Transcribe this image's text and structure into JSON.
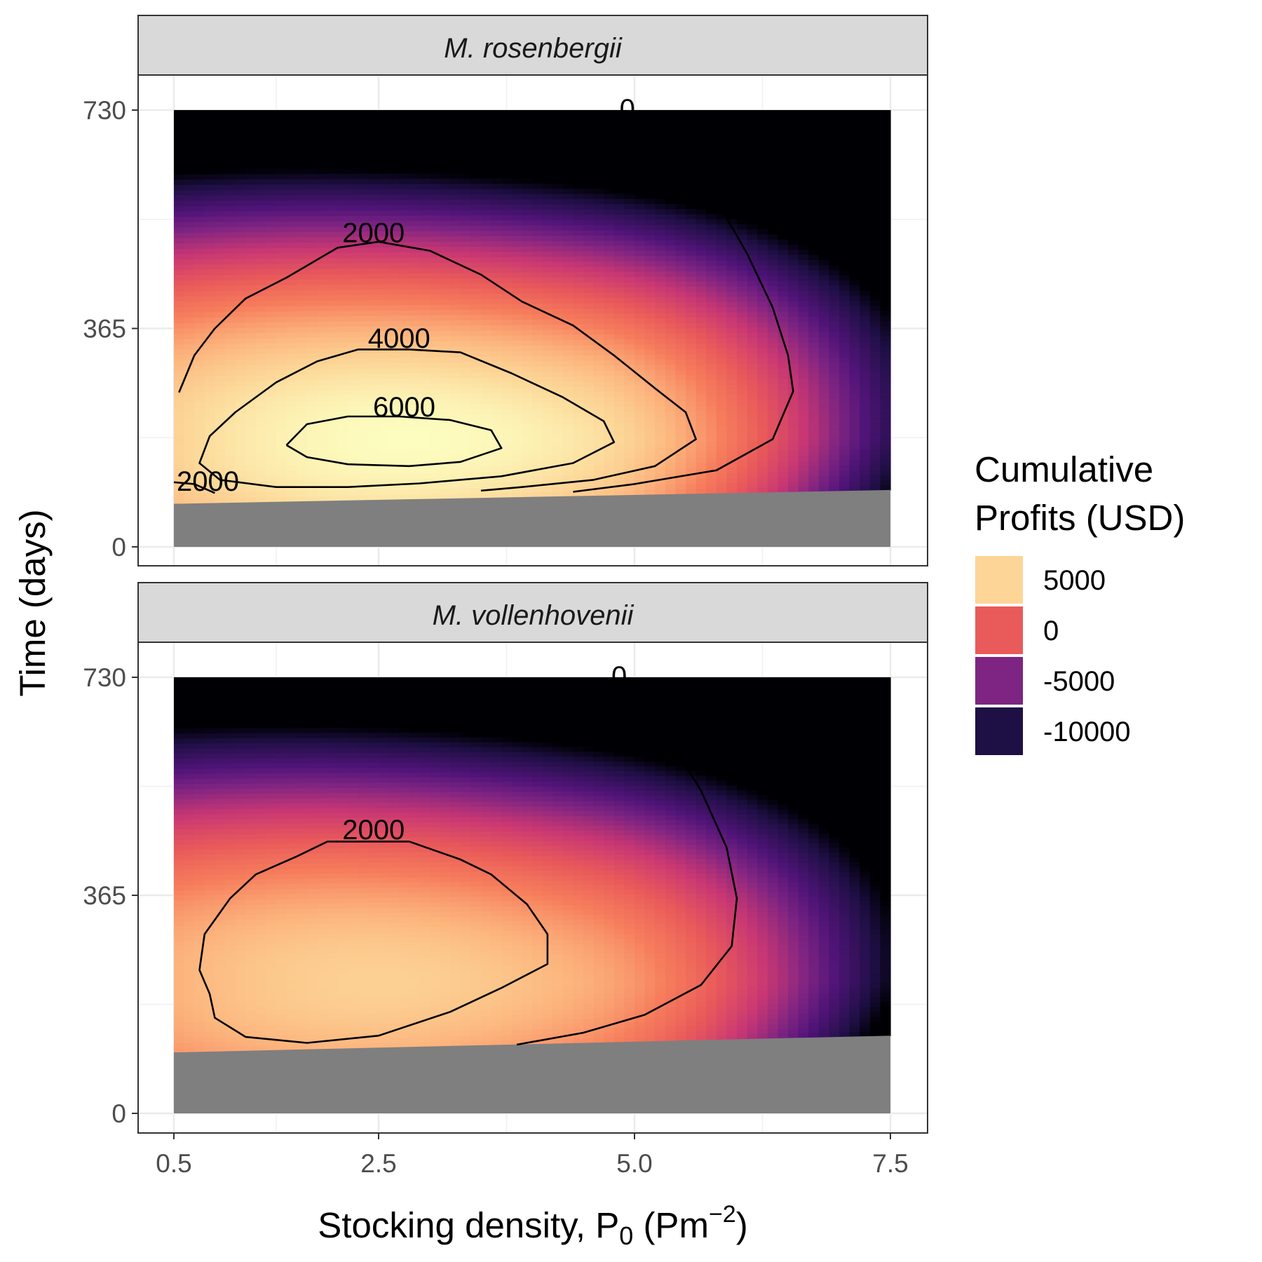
{
  "chart_data": {
    "type": "heatmap",
    "subtype": "filled-gradient-with-contours",
    "x_axis": {
      "label_main": "Stocking density, P",
      "label_sub": "0",
      "label_tail_open": " (Pm",
      "label_sup": "−2",
      "label_close": ")",
      "range": [
        0.5,
        7.5
      ],
      "ticks": [
        0.5,
        2.5,
        5.0,
        7.5
      ],
      "tick_labels": [
        "0.5",
        "2.5",
        "5.0",
        "7.5"
      ]
    },
    "y_axis": {
      "label": "Time (days)",
      "range": [
        0,
        730
      ],
      "ticks": [
        0,
        365,
        730
      ],
      "tick_labels": [
        "0",
        "365",
        "730"
      ]
    },
    "grid": true,
    "legend": {
      "title_line1": "Cumulative",
      "title_line2": "Profits (USD)",
      "position": "right",
      "entries": [
        {
          "label": "5000",
          "color": "#FCD597"
        },
        {
          "label": "0",
          "color": "#E95A5A"
        },
        {
          "label": "-5000",
          "color": "#7E2482"
        },
        {
          "label": "-10000",
          "color": "#1E0F44"
        }
      ]
    },
    "unavailable_color": "#7F7F7F",
    "panels": [
      {
        "title": "M. rosenbergii",
        "peak": {
          "x": 2.8,
          "y": 180
        },
        "infeasible_boundary": [
          [
            0.5,
            72
          ],
          [
            7.5,
            95
          ]
        ],
        "contours": [
          {
            "label": "0",
            "label_pos": [
              4.93,
              730
            ],
            "points": [
              [
                4.95,
                720
              ],
              [
                5.4,
                660
              ],
              [
                5.8,
                580
              ],
              [
                6.1,
                490
              ],
              [
                6.35,
                400
              ],
              [
                6.5,
                320
              ],
              [
                6.55,
                260
              ],
              [
                6.35,
                180
              ],
              [
                5.8,
                128
              ],
              [
                5.0,
                105
              ],
              [
                4.4,
                92
              ]
            ]
          },
          {
            "label": "2000",
            "label_pos": [
              2.45,
              523
            ],
            "points": [
              [
                0.55,
                258
              ],
              [
                0.7,
                320
              ],
              [
                0.9,
                365
              ],
              [
                1.2,
                415
              ],
              [
                1.6,
                450
              ],
              [
                2.1,
                500
              ],
              [
                2.5,
                510
              ],
              [
                3.0,
                495
              ],
              [
                3.5,
                455
              ],
              [
                3.9,
                410
              ],
              [
                4.4,
                370
              ],
              [
                4.8,
                320
              ],
              [
                5.2,
                265
              ],
              [
                5.5,
                225
              ],
              [
                5.6,
                180
              ],
              [
                5.2,
                135
              ],
              [
                4.6,
                112
              ],
              [
                3.9,
                100
              ],
              [
                3.5,
                94
              ]
            ]
          },
          {
            "label": "2000",
            "label_pos": [
              0.5,
              108
            ],
            "points": [
              [
                0.5,
                108
              ],
              [
                0.7,
                105
              ],
              [
                0.9,
                90
              ]
            ]
          },
          {
            "label": "4000",
            "label_pos": [
              2.7,
              347
            ],
            "points": [
              [
                1.5,
                100
              ],
              [
                0.95,
                112
              ],
              [
                0.75,
                140
              ],
              [
                0.85,
                185
              ],
              [
                1.1,
                225
              ],
              [
                1.5,
                275
              ],
              [
                1.9,
                310
              ],
              [
                2.3,
                330
              ],
              [
                2.8,
                330
              ],
              [
                3.3,
                325
              ],
              [
                3.8,
                290
              ],
              [
                4.3,
                250
              ],
              [
                4.7,
                210
              ],
              [
                4.8,
                175
              ],
              [
                4.4,
                140
              ],
              [
                3.7,
                118
              ],
              [
                2.9,
                106
              ],
              [
                2.2,
                100
              ],
              [
                1.5,
                100
              ]
            ]
          },
          {
            "label": "6000",
            "label_pos": [
              2.75,
              232
            ],
            "points": [
              [
                1.6,
                170
              ],
              [
                1.8,
                205
              ],
              [
                2.2,
                218
              ],
              [
                2.7,
                218
              ],
              [
                3.2,
                212
              ],
              [
                3.6,
                195
              ],
              [
                3.7,
                165
              ],
              [
                3.3,
                142
              ],
              [
                2.8,
                135
              ],
              [
                2.2,
                138
              ],
              [
                1.8,
                150
              ],
              [
                1.6,
                170
              ]
            ]
          }
        ]
      },
      {
        "title": "M. vollenhovenii",
        "peak": {
          "x": 2.5,
          "y": 220
        },
        "infeasible_boundary": [
          [
            0.5,
            102
          ],
          [
            7.5,
            130
          ]
        ],
        "contours": [
          {
            "label": "0",
            "label_pos": [
              4.85,
              730
            ],
            "points": [
              [
                4.85,
                720
              ],
              [
                5.3,
                640
              ],
              [
                5.65,
                540
              ],
              [
                5.9,
                445
              ],
              [
                6.0,
                360
              ],
              [
                5.95,
                280
              ],
              [
                5.65,
                215
              ],
              [
                5.1,
                165
              ],
              [
                4.5,
                135
              ],
              [
                3.85,
                115
              ]
            ]
          },
          {
            "label": "2000",
            "label_pos": [
              2.45,
              473
            ],
            "points": [
              [
                0.85,
                200
              ],
              [
                0.75,
                240
              ],
              [
                0.8,
                300
              ],
              [
                1.05,
                360
              ],
              [
                1.3,
                400
              ],
              [
                1.7,
                430
              ],
              [
                2.0,
                455
              ],
              [
                2.8,
                455
              ],
              [
                3.3,
                425
              ],
              [
                3.6,
                400
              ],
              [
                3.95,
                350
              ],
              [
                4.15,
                300
              ],
              [
                4.15,
                250
              ],
              [
                3.7,
                210
              ],
              [
                3.2,
                170
              ],
              [
                2.5,
                130
              ],
              [
                1.8,
                118
              ],
              [
                1.2,
                128
              ],
              [
                0.9,
                160
              ],
              [
                0.85,
                200
              ]
            ]
          }
        ]
      }
    ]
  }
}
